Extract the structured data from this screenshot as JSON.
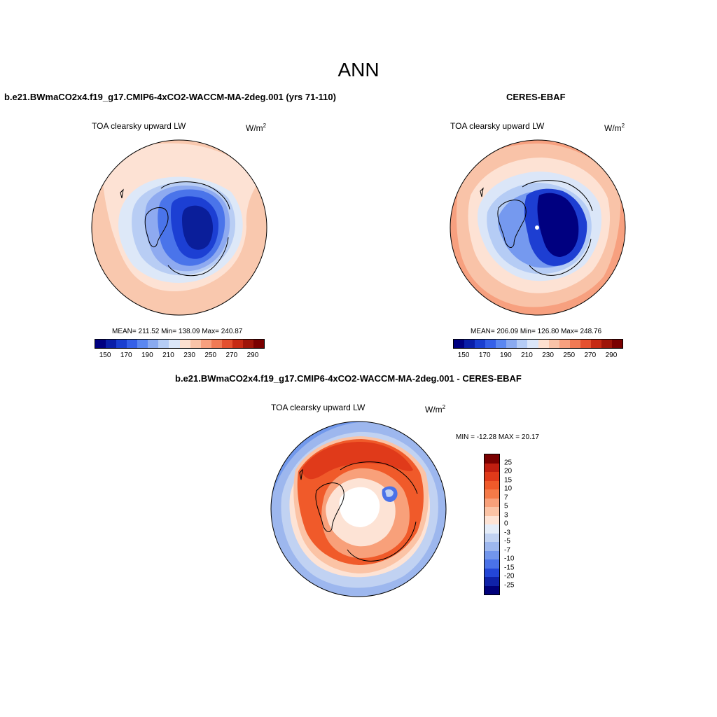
{
  "figure": {
    "title": "ANN"
  },
  "panels": {
    "model": {
      "title": "b.e21.BWmaCO2x4.f19_g17.CMIP6-4xCO2-WACCM-MA-2deg.001 (yrs 71-110)",
      "variable": "TOA clearsky upward LW",
      "units_base": "W/m",
      "units_exp": "2",
      "stats": "MEAN= 211.52  Min= 138.09  Max= 240.87",
      "mean": 211.52,
      "min": 138.09,
      "max": 240.87
    },
    "obs": {
      "title": "CERES-EBAF",
      "variable": "TOA clearsky upward LW",
      "units_base": "W/m",
      "units_exp": "2",
      "stats": "MEAN= 206.09  Min= 126.80  Max= 248.76",
      "mean": 206.09,
      "min": 126.8,
      "max": 248.76
    },
    "diff": {
      "title": "b.e21.BWmaCO2x4.f19_g17.CMIP6-4xCO2-WACCM-MA-2deg.001 - CERES-EBAF",
      "variable": "TOA clearsky upward LW",
      "units_base": "W/m",
      "units_exp": "2",
      "stats": "MIN = -12.28 MAX =  20.17",
      "min": -12.28,
      "max": 20.17
    }
  },
  "colorbars": {
    "field": {
      "labels": [
        "150",
        "170",
        "190",
        "210",
        "230",
        "250",
        "270",
        "290"
      ],
      "colors": [
        "#000080",
        "#0a1fa8",
        "#1a3fd0",
        "#3560e8",
        "#5b87f0",
        "#8aaaf0",
        "#b5ccf5",
        "#dbe6f8",
        "#fde0d0",
        "#f9c3a8",
        "#f7a07f",
        "#f07a55",
        "#e4502f",
        "#c62a14",
        "#9e1509",
        "#7a0000"
      ]
    },
    "diff": {
      "labels": [
        "25",
        "20",
        "15",
        "10",
        "7",
        "5",
        "3",
        "0",
        "-3",
        "-5",
        "-7",
        "-10",
        "-15",
        "-20",
        "-25"
      ],
      "colors": [
        "#7a0000",
        "#c01e10",
        "#e03a1a",
        "#f05a2a",
        "#f57a48",
        "#f8a07a",
        "#fbc3a5",
        "#fde3d5",
        "#e4ecf8",
        "#c1d2f2",
        "#9db7ee",
        "#7296ec",
        "#4a72e8",
        "#2346d6",
        "#0f22a8",
        "#00007a"
      ]
    }
  }
}
